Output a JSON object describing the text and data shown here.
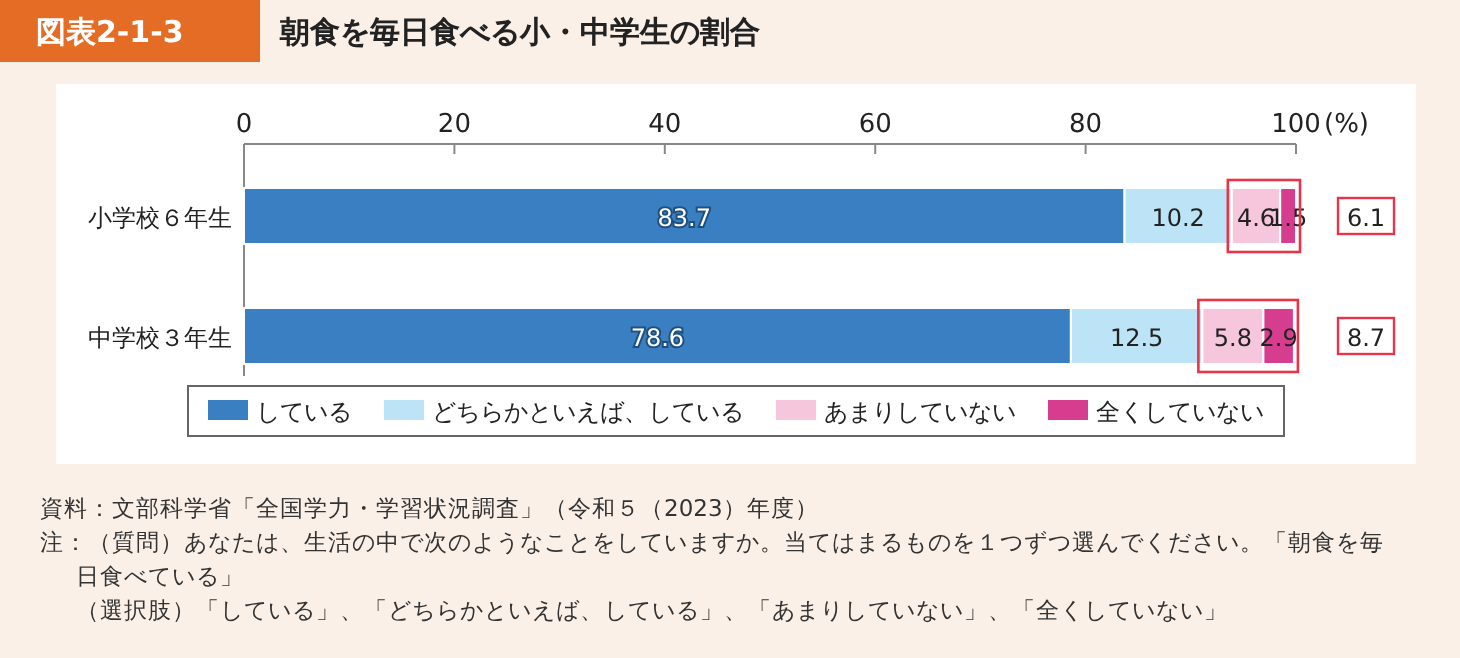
{
  "chart_data": {
    "type": "bar",
    "orientation": "horizontal",
    "stacked": true,
    "subtitle": "図表2-1-3",
    "title": "朝食を毎日食べる小・中学生の割合",
    "xlabel": "(%)",
    "categories": [
      "小学校６年生",
      "中学校３年生"
    ],
    "series": [
      {
        "name": "している",
        "color": "#3a7fc1",
        "values": [
          83.7,
          78.6
        ]
      },
      {
        "name": "どちらかといえば、している",
        "color": "#bde3f7",
        "values": [
          10.2,
          12.5
        ]
      },
      {
        "name": "あまりしていない",
        "color": "#f5c6dc",
        "values": [
          4.6,
          5.8
        ]
      },
      {
        "name": "全くしていない",
        "color": "#d63d8f",
        "values": [
          1.5,
          2.9
        ]
      }
    ],
    "xlim": [
      0,
      100
    ],
    "xticks": [
      0,
      20,
      40,
      60,
      80,
      100
    ],
    "data_labels": true,
    "legend": "bottom",
    "grid": false,
    "annotations": [
      "6.1",
      "8.7",
      "資料：文部科学省「全国学力・学習状況調査」（令和５（2023）年度）",
      "注：（質問）あなたは、生活の中で次のようなことをしていますか。当てはまるものを１つずつ選んでください。「朝食を毎日食べている」",
      "（選択肢）「している」、「どちらかといえば、している」、「あまりしていない」、「全くしていない」"
    ]
  }
}
